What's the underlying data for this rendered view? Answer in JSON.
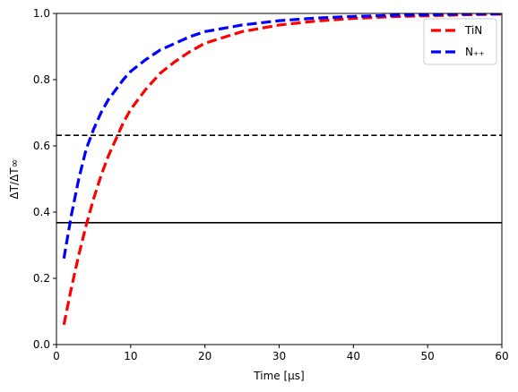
{
  "chart_data": {
    "type": "line",
    "xlabel": "Time [µs]",
    "ylabel": "ΔT/ΔT∞",
    "xlim": [
      0,
      60
    ],
    "ylim": [
      0,
      1.0
    ],
    "xticks": [
      0,
      10,
      20,
      30,
      40,
      50,
      60
    ],
    "yticks": [
      0.0,
      0.2,
      0.4,
      0.6,
      0.8,
      1.0
    ],
    "xtick_labels": [
      "0",
      "10",
      "20",
      "30",
      "40",
      "50",
      "60"
    ],
    "ytick_labels": [
      "0.0",
      "0.2",
      "0.4",
      "0.6",
      "0.8",
      "1.0"
    ],
    "grid": false,
    "legend_position": "top-right",
    "series": [
      {
        "name": "TiN",
        "color": "#ff0000",
        "style": "dashed",
        "x": [
          1,
          2,
          3,
          4,
          5,
          6,
          7,
          8,
          9,
          10,
          12,
          14,
          16,
          18,
          20,
          25,
          30,
          35,
          40,
          45,
          50,
          55,
          60
        ],
        "y": [
          0.06,
          0.17,
          0.27,
          0.36,
          0.44,
          0.51,
          0.57,
          0.62,
          0.67,
          0.71,
          0.77,
          0.82,
          0.855,
          0.885,
          0.91,
          0.945,
          0.965,
          0.977,
          0.985,
          0.99,
          0.993,
          0.996,
          0.998
        ]
      },
      {
        "name": "N₊₊",
        "color": "#0000ff",
        "style": "dashed",
        "x": [
          1,
          2,
          3,
          4,
          5,
          6,
          7,
          8,
          9,
          10,
          12,
          14,
          16,
          18,
          20,
          25,
          30,
          35,
          40,
          45,
          50,
          55,
          60
        ],
        "y": [
          0.26,
          0.39,
          0.5,
          0.59,
          0.65,
          0.7,
          0.74,
          0.77,
          0.8,
          0.825,
          0.86,
          0.89,
          0.91,
          0.93,
          0.945,
          0.965,
          0.978,
          0.986,
          0.991,
          0.994,
          0.996,
          0.998,
          0.999
        ]
      }
    ],
    "reference_lines": [
      {
        "y": 0.632,
        "style": "dashed",
        "color": "#000000"
      },
      {
        "y": 0.368,
        "style": "solid",
        "color": "#000000"
      }
    ]
  }
}
